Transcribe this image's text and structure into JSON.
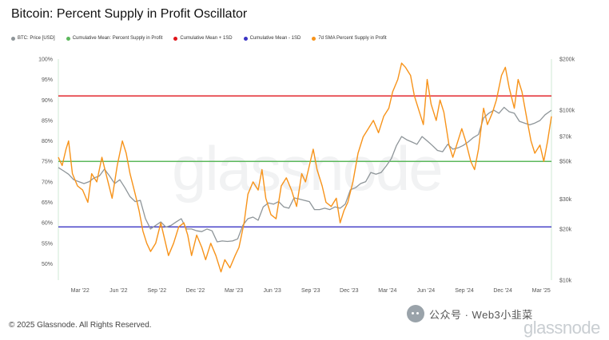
{
  "title": "Bitcoin: Percent Supply in Profit Oscillator",
  "legend": [
    {
      "label": "BTC: Price [USD]",
      "color": "#8e9599"
    },
    {
      "label": "Cumulative Mean: Percent Supply in Profit",
      "color": "#5cb85c"
    },
    {
      "label": "Cumulative Mean + 1SD",
      "color": "#e0151b"
    },
    {
      "label": "Cumulative Mean - 1SD",
      "color": "#3b35c4"
    },
    {
      "label": "7d SMA Percent Supply in Profit",
      "color": "#f7931a"
    }
  ],
  "footer": "© 2025 Glassnode. All Rights Reserved.",
  "watermark": {
    "text": "公众号 · Web3小韭菜",
    "brand": "glassnode"
  },
  "chart_data": {
    "type": "line",
    "title": "Bitcoin: Percent Supply in Profit Oscillator",
    "x_ticks": [
      "Mar '22",
      "Jun '22",
      "Sep '22",
      "Dec '22",
      "Mar '23",
      "Jun '23",
      "Sep '23",
      "Dec '23",
      "Mar '24",
      "Jun '24",
      "Sep '24",
      "Dec '24",
      "Mar '25"
    ],
    "y_left_ticks": [
      "100%",
      "95%",
      "90%",
      "85%",
      "80%",
      "75%",
      "70%",
      "65%",
      "60%",
      "55%",
      "50%"
    ],
    "y_left_range": [
      46,
      100
    ],
    "y_right_ticks": [
      "$200k",
      "$100k",
      "$70k",
      "$50k",
      "$30k",
      "$20k",
      "$10k"
    ],
    "y_right_values": [
      200000,
      100000,
      70000,
      50000,
      30000,
      20000,
      10000
    ],
    "y_right_range": [
      10000,
      200000
    ],
    "y_right_scale": "log",
    "x_range": [
      0,
      38.5
    ],
    "horizontal_lines": [
      {
        "name": "Cumulative Mean + 1SD",
        "value": 91
      },
      {
        "name": "Cumulative Mean: Percent Supply in Profit",
        "value": 75
      },
      {
        "name": "Cumulative Mean - 1SD",
        "value": 59
      }
    ],
    "series": [
      {
        "name": "7d SMA Percent Supply in Profit",
        "axis": "left",
        "points": [
          [
            0,
            76
          ],
          [
            0.3,
            74
          ],
          [
            0.6,
            78
          ],
          [
            0.8,
            80
          ],
          [
            1.1,
            72
          ],
          [
            1.5,
            69
          ],
          [
            1.9,
            68
          ],
          [
            2.3,
            65
          ],
          [
            2.6,
            72
          ],
          [
            3.0,
            70
          ],
          [
            3.4,
            76
          ],
          [
            3.8,
            71
          ],
          [
            4.2,
            66
          ],
          [
            4.6,
            74
          ],
          [
            5.0,
            80
          ],
          [
            5.3,
            77
          ],
          [
            5.6,
            72
          ],
          [
            6.0,
            67
          ],
          [
            6.3,
            63
          ],
          [
            6.6,
            58
          ],
          [
            6.9,
            55
          ],
          [
            7.2,
            53
          ],
          [
            7.6,
            55
          ],
          [
            8.0,
            60
          ],
          [
            8.3,
            56
          ],
          [
            8.6,
            52
          ],
          [
            9.0,
            55
          ],
          [
            9.4,
            59
          ],
          [
            9.8,
            60
          ],
          [
            10.1,
            57
          ],
          [
            10.4,
            52
          ],
          [
            10.8,
            57
          ],
          [
            11.2,
            54
          ],
          [
            11.5,
            51
          ],
          [
            11.9,
            55
          ],
          [
            12.3,
            52
          ],
          [
            12.7,
            48
          ],
          [
            13.0,
            51
          ],
          [
            13.4,
            49
          ],
          [
            13.8,
            52
          ],
          [
            14.1,
            54
          ],
          [
            14.5,
            60
          ],
          [
            14.8,
            67
          ],
          [
            15.2,
            70
          ],
          [
            15.6,
            68
          ],
          [
            15.9,
            73
          ],
          [
            16.2,
            66
          ],
          [
            16.6,
            62
          ],
          [
            17.0,
            61
          ],
          [
            17.4,
            69
          ],
          [
            17.8,
            71
          ],
          [
            18.2,
            68
          ],
          [
            18.6,
            64
          ],
          [
            19.0,
            72
          ],
          [
            19.3,
            70
          ],
          [
            19.6,
            74
          ],
          [
            19.9,
            78
          ],
          [
            20.2,
            73
          ],
          [
            20.6,
            69
          ],
          [
            20.9,
            65
          ],
          [
            21.3,
            64
          ],
          [
            21.7,
            66
          ],
          [
            22.0,
            60
          ],
          [
            22.3,
            63
          ],
          [
            22.6,
            65
          ],
          [
            23.0,
            70
          ],
          [
            23.4,
            77
          ],
          [
            23.8,
            81
          ],
          [
            24.2,
            83
          ],
          [
            24.6,
            85
          ],
          [
            25.0,
            82
          ],
          [
            25.4,
            86
          ],
          [
            25.8,
            88
          ],
          [
            26.1,
            92
          ],
          [
            26.5,
            95
          ],
          [
            26.8,
            99
          ],
          [
            27.1,
            98
          ],
          [
            27.5,
            96
          ],
          [
            27.8,
            91
          ],
          [
            28.2,
            87
          ],
          [
            28.5,
            84
          ],
          [
            28.8,
            95
          ],
          [
            29.1,
            89
          ],
          [
            29.5,
            85
          ],
          [
            29.8,
            90
          ],
          [
            30.1,
            87
          ],
          [
            30.5,
            79
          ],
          [
            30.8,
            76
          ],
          [
            31.1,
            79
          ],
          [
            31.5,
            83
          ],
          [
            31.8,
            80
          ],
          [
            32.2,
            75
          ],
          [
            32.5,
            73
          ],
          [
            32.8,
            78
          ],
          [
            33.2,
            88
          ],
          [
            33.5,
            84
          ],
          [
            33.9,
            87
          ],
          [
            34.2,
            90
          ],
          [
            34.6,
            96
          ],
          [
            34.9,
            98
          ],
          [
            35.2,
            93
          ],
          [
            35.6,
            88
          ],
          [
            35.9,
            95
          ],
          [
            36.2,
            92
          ],
          [
            36.6,
            85
          ],
          [
            36.9,
            80
          ],
          [
            37.2,
            77
          ],
          [
            37.6,
            79
          ],
          [
            37.9,
            75
          ],
          [
            38.2,
            80
          ],
          [
            38.5,
            86
          ]
        ]
      },
      {
        "name": "BTC: Price [USD]",
        "axis": "right",
        "points": [
          [
            0,
            46000
          ],
          [
            0.4,
            44000
          ],
          [
            0.8,
            42000
          ],
          [
            1.2,
            39000
          ],
          [
            1.6,
            38000
          ],
          [
            2.0,
            37000
          ],
          [
            2.4,
            38000
          ],
          [
            2.8,
            40000
          ],
          [
            3.2,
            41000
          ],
          [
            3.6,
            45000
          ],
          [
            4.0,
            41000
          ],
          [
            4.4,
            37000
          ],
          [
            4.8,
            39000
          ],
          [
            5.2,
            35000
          ],
          [
            5.6,
            31000
          ],
          [
            6.0,
            29000
          ],
          [
            6.4,
            29500
          ],
          [
            6.8,
            23000
          ],
          [
            7.2,
            20000
          ],
          [
            7.6,
            21000
          ],
          [
            8.0,
            22000
          ],
          [
            8.4,
            20500
          ],
          [
            8.8,
            21000
          ],
          [
            9.2,
            22000
          ],
          [
            9.6,
            23000
          ],
          [
            10.0,
            20000
          ],
          [
            10.4,
            20000
          ],
          [
            10.8,
            19500
          ],
          [
            11.2,
            19300
          ],
          [
            11.6,
            20000
          ],
          [
            12.0,
            19500
          ],
          [
            12.4,
            16800
          ],
          [
            12.8,
            17000
          ],
          [
            13.2,
            16900
          ],
          [
            13.6,
            17000
          ],
          [
            14.0,
            17500
          ],
          [
            14.4,
            21000
          ],
          [
            14.8,
            23000
          ],
          [
            15.2,
            23500
          ],
          [
            15.6,
            22500
          ],
          [
            16.0,
            27000
          ],
          [
            16.4,
            28500
          ],
          [
            16.8,
            28000
          ],
          [
            17.2,
            29000
          ],
          [
            17.6,
            27000
          ],
          [
            18.0,
            26500
          ],
          [
            18.4,
            30500
          ],
          [
            18.8,
            30000
          ],
          [
            19.2,
            29500
          ],
          [
            19.6,
            29000
          ],
          [
            20.0,
            26000
          ],
          [
            20.4,
            26000
          ],
          [
            20.8,
            26500
          ],
          [
            21.2,
            26000
          ],
          [
            21.6,
            27000
          ],
          [
            22.0,
            26500
          ],
          [
            22.4,
            28000
          ],
          [
            22.8,
            34000
          ],
          [
            23.2,
            35000
          ],
          [
            23.6,
            37000
          ],
          [
            24.0,
            38000
          ],
          [
            24.4,
            43000
          ],
          [
            24.8,
            42000
          ],
          [
            25.2,
            43000
          ],
          [
            25.6,
            47000
          ],
          [
            26.0,
            52000
          ],
          [
            26.4,
            62000
          ],
          [
            26.8,
            70000
          ],
          [
            27.2,
            67000
          ],
          [
            27.6,
            65000
          ],
          [
            28.0,
            63000
          ],
          [
            28.4,
            70000
          ],
          [
            28.8,
            66000
          ],
          [
            29.2,
            62000
          ],
          [
            29.6,
            58000
          ],
          [
            30.0,
            57000
          ],
          [
            30.4,
            63000
          ],
          [
            30.8,
            59000
          ],
          [
            31.2,
            60000
          ],
          [
            31.6,
            62000
          ],
          [
            32.0,
            65000
          ],
          [
            32.4,
            69000
          ],
          [
            32.8,
            72000
          ],
          [
            33.2,
            90000
          ],
          [
            33.6,
            96000
          ],
          [
            34.0,
            100000
          ],
          [
            34.4,
            96000
          ],
          [
            34.8,
            104000
          ],
          [
            35.2,
            98000
          ],
          [
            35.6,
            96000
          ],
          [
            36.0,
            86000
          ],
          [
            36.4,
            84000
          ],
          [
            36.8,
            82000
          ],
          [
            37.2,
            84000
          ],
          [
            37.6,
            87000
          ],
          [
            38.0,
            94000
          ],
          [
            38.5,
            100000
          ]
        ]
      }
    ]
  }
}
